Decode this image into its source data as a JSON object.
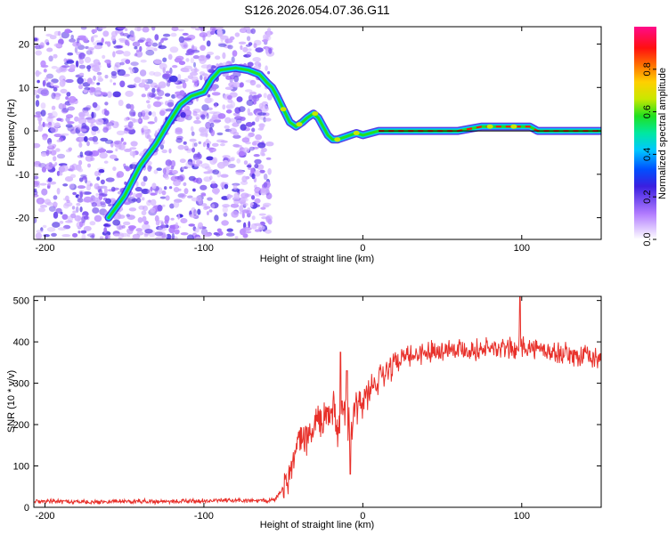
{
  "title": "S126.2026.054.07.36.G11",
  "chart_data": [
    {
      "type": "heatmap",
      "name": "spectrogram",
      "title": "S126.2026.054.07.36.G11",
      "xlabel": "Height of straight line (km)",
      "ylabel": "Frequency (Hz)",
      "xlim": [
        -207,
        150
      ],
      "ylim": [
        -25,
        24
      ],
      "xticks": [
        -200,
        -100,
        0,
        100
      ],
      "yticks": [
        -20,
        -10,
        0,
        10,
        20
      ],
      "noise_region_x": [
        -207,
        -58
      ],
      "signal_ridge": {
        "x": [
          -160,
          -150,
          -140,
          -130,
          -122,
          -115,
          -108,
          -100,
          -95,
          -90,
          -80,
          -72,
          -65,
          -60,
          -57,
          -54,
          -50,
          -46,
          -42,
          -38,
          -35,
          -31,
          -28,
          -25,
          -22,
          -19,
          -16,
          -12,
          -8,
          -4,
          0,
          5,
          10,
          20,
          40,
          60,
          75,
          85,
          95,
          105,
          110,
          130,
          150
        ],
        "y": [
          -20,
          -15,
          -8,
          -3,
          2,
          6,
          8,
          9,
          12,
          14,
          14.5,
          14,
          13,
          11,
          10,
          8,
          5,
          2,
          1,
          2,
          3,
          4,
          3,
          1,
          -1,
          -2,
          -2,
          -1.5,
          -1,
          -0.5,
          -1,
          -0.5,
          0,
          0,
          0,
          0,
          1,
          1,
          1,
          1,
          0,
          0,
          0
        ]
      },
      "colorbar": {
        "label": "Normalized spectral amplitude",
        "range": [
          0,
          1
        ],
        "ticks": [
          0.0,
          0.2,
          0.4,
          0.6,
          0.8
        ],
        "tick_labels": [
          "0.0",
          "0.2",
          "0.4",
          "0.6",
          "0.8"
        ]
      }
    },
    {
      "type": "line",
      "name": "snr",
      "xlabel": "Height of straight line (km)",
      "ylabel": "SNR (10 * v/v)",
      "xlim": [
        -207,
        150
      ],
      "ylim": [
        0,
        510
      ],
      "xticks": [
        -200,
        -100,
        0,
        100
      ],
      "yticks": [
        0,
        100,
        200,
        300,
        400,
        500
      ],
      "color": "#e8302a",
      "series": [
        {
          "name": "SNR",
          "x": [
            -207,
            -190,
            -170,
            -150,
            -130,
            -110,
            -90,
            -70,
            -60,
            -55,
            -50,
            -45,
            -42,
            -40,
            -38,
            -35,
            -32,
            -30,
            -28,
            -26,
            -24,
            -22,
            -20,
            -18,
            -16,
            -14,
            -12,
            -10,
            -8,
            -6,
            -4,
            -2,
            0,
            2,
            5,
            8,
            10,
            15,
            20,
            25,
            30,
            35,
            40,
            45,
            50,
            55,
            60,
            65,
            70,
            75,
            80,
            85,
            90,
            95,
            100,
            105,
            110,
            115,
            120,
            125,
            130,
            135,
            140,
            145,
            150
          ],
          "y": [
            15,
            14,
            13,
            15,
            14,
            15,
            16,
            16,
            15,
            20,
            50,
            90,
            130,
            150,
            165,
            170,
            180,
            200,
            210,
            190,
            220,
            230,
            220,
            250,
            180,
            210,
            260,
            210,
            195,
            215,
            235,
            240,
            255,
            265,
            285,
            300,
            315,
            335,
            350,
            360,
            365,
            370,
            375,
            380,
            380,
            385,
            385,
            380,
            380,
            385,
            385,
            380,
            385,
            385,
            390,
            385,
            380,
            380,
            375,
            375,
            370,
            365,
            365,
            360,
            360
          ]
        }
      ],
      "spikes": [
        {
          "x": -14,
          "y": 375
        },
        {
          "x": -10,
          "y": 330
        },
        {
          "x": -8,
          "y": 80
        },
        {
          "x": 99,
          "y": 510
        }
      ]
    }
  ]
}
